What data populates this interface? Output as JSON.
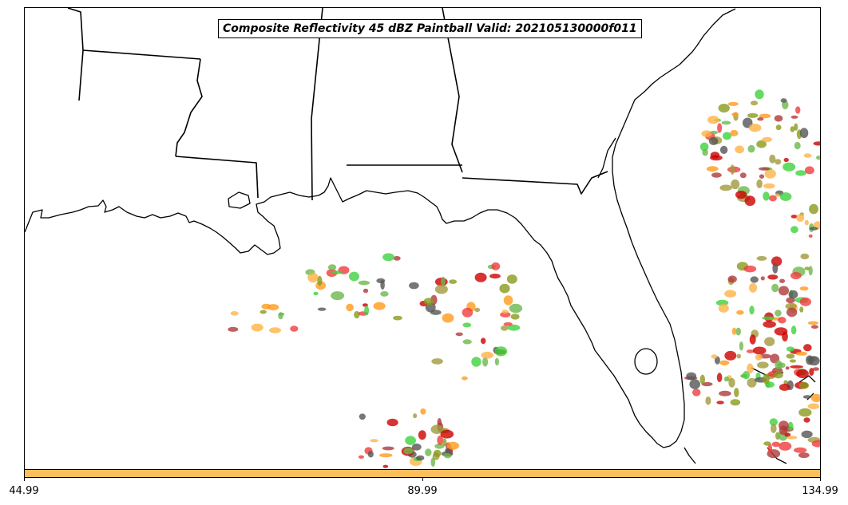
{
  "title": "Composite Reflectivity 45 dBZ Paintball Valid: 202105130000f011",
  "colorbar": {
    "color": "#ffbe5c",
    "ticks": [
      "44.99",
      "89.99",
      "134.99"
    ]
  },
  "layers": {
    "coastline_color": "#000000",
    "state_border_color": "#000000",
    "background_color": "#ffffff"
  },
  "paintball_palette": [
    "#f03c3c",
    "#b03a3a",
    "#3fd23f",
    "#8a9a1c",
    "#a09a3c",
    "#ff9a1a",
    "#555555",
    "#cc0000",
    "#ffb347",
    "#6bb84b"
  ]
}
